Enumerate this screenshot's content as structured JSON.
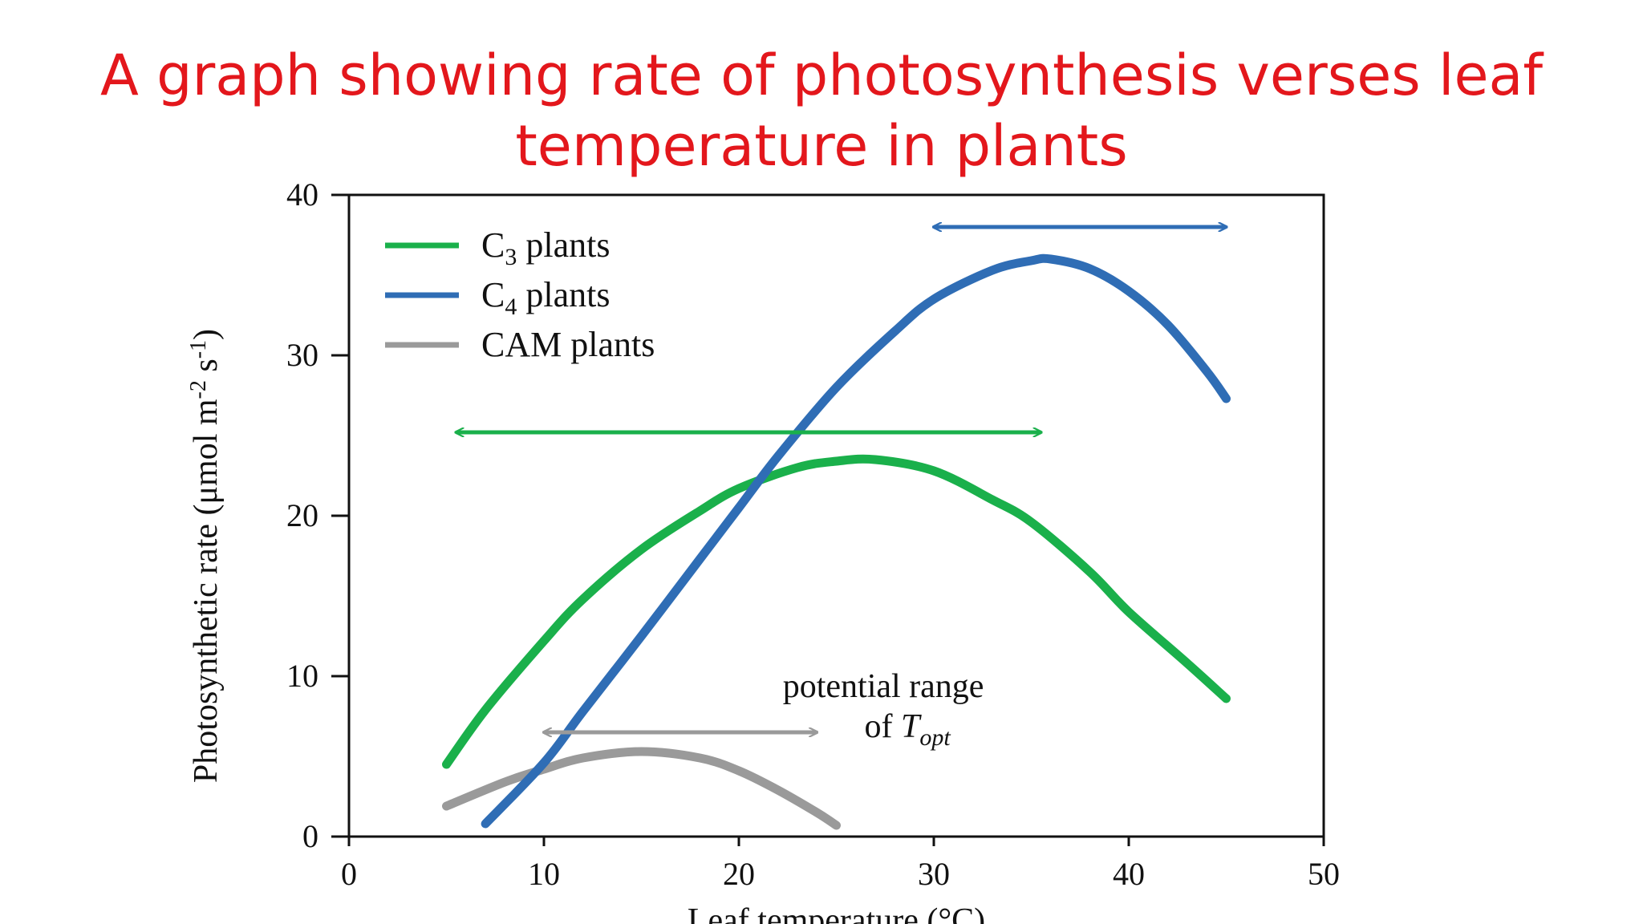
{
  "slide": {
    "title_line1": "A graph showing rate of photosynthesis verses leaf",
    "title_line2": "temperature in plants",
    "title_color": "#e3171c"
  },
  "chart_data": {
    "type": "line",
    "title": "A graph showing rate of photosynthesis verses leaf temperature in plants",
    "xlabel": "Leaf temperature (°C)",
    "ylabel": "Photosynthetic rate (μmol m-2 s-1)",
    "ylabel_parts": {
      "base": "Photosynthetic rate (μmol m",
      "sup1": "-2",
      "mid": " s",
      "sup2": "-1",
      "end": ")"
    },
    "xlim": [
      0,
      50
    ],
    "ylim": [
      0,
      40
    ],
    "xticks": [
      0,
      10,
      20,
      30,
      40,
      50
    ],
    "yticks": [
      0,
      10,
      20,
      30,
      40
    ],
    "grid": false,
    "legend_position": "top-left",
    "series": [
      {
        "name": "C3 plants",
        "legend_base": "C",
        "legend_sub": "3",
        "legend_rest": " plants",
        "color": "#1ab04b",
        "x": [
          5,
          7,
          10,
          12,
          15,
          18,
          20,
          23,
          25,
          27,
          30,
          33,
          35,
          38,
          40,
          43,
          45
        ],
        "y": [
          4.5,
          7.9,
          12.2,
          14.8,
          17.9,
          20.3,
          21.7,
          23.0,
          23.4,
          23.5,
          22.8,
          21.0,
          19.6,
          16.5,
          14.0,
          10.8,
          8.6
        ]
      },
      {
        "name": "C4 plants",
        "legend_base": "C",
        "legend_sub": "4",
        "legend_rest": " plants",
        "color": "#2f6db5",
        "x": [
          7,
          10,
          12,
          15,
          18,
          20,
          22,
          25,
          28,
          30,
          33,
          35,
          36,
          38,
          40,
          42,
          44,
          45
        ],
        "y": [
          0.8,
          4.6,
          7.8,
          12.5,
          17.3,
          20.5,
          23.7,
          28.0,
          31.5,
          33.5,
          35.3,
          35.9,
          36.0,
          35.4,
          34.0,
          31.9,
          29.0,
          27.3
        ]
      },
      {
        "name": "CAM plants",
        "legend_base": "CAM plants",
        "legend_sub": "",
        "legend_rest": "",
        "color": "#9a9a9a",
        "x": [
          5,
          8,
          10,
          12,
          15,
          18,
          20,
          22,
          24,
          25
        ],
        "y": [
          1.9,
          3.4,
          4.2,
          4.9,
          5.3,
          4.9,
          4.1,
          2.9,
          1.5,
          0.7
        ]
      }
    ],
    "range_arrows": [
      {
        "series": "C4 plants",
        "x_start": 30,
        "x_end": 45,
        "y": 38
      },
      {
        "series": "C3 plants",
        "x_start": 5.5,
        "x_end": 35.5,
        "y": 25.2
      },
      {
        "series": "CAM plants",
        "x_start": 10,
        "x_end": 24,
        "y": 6.5
      }
    ],
    "annotation": {
      "line1": "potential range",
      "line2_prefix": "of ",
      "line2_italic": "T",
      "line2_sub": "opt",
      "x": 27,
      "y": 9.5
    }
  }
}
